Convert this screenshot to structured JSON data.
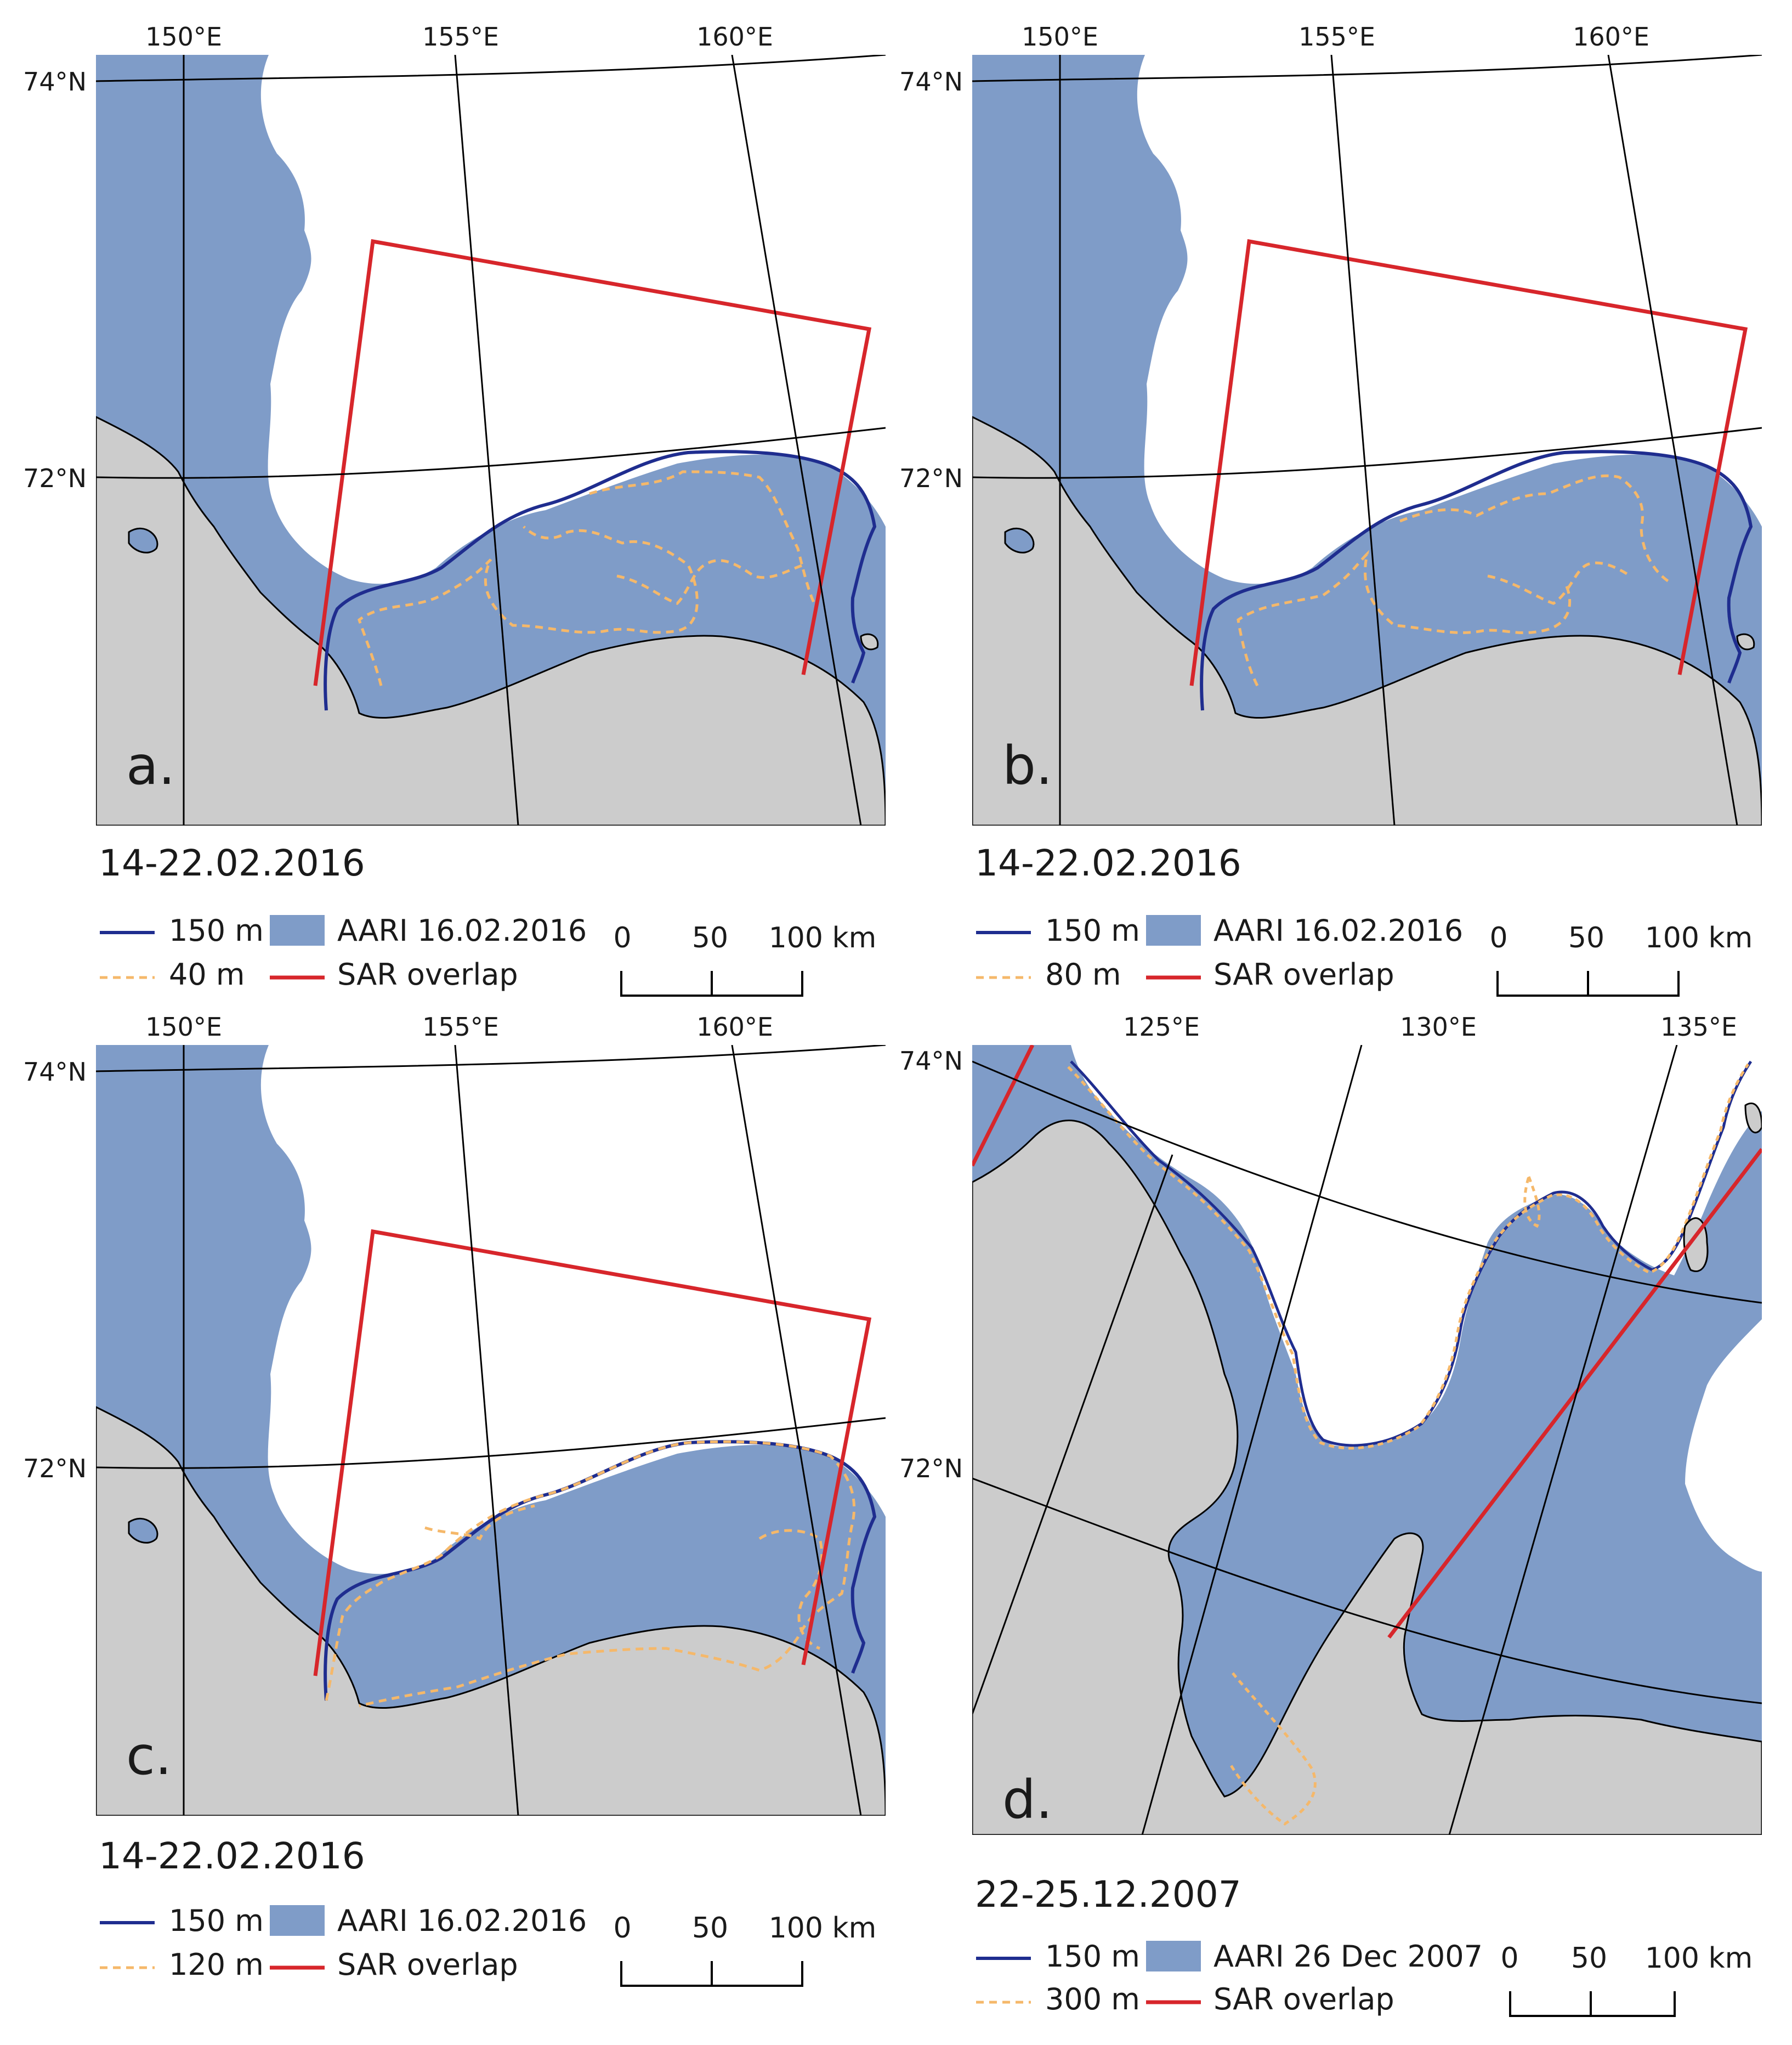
{
  "colors": {
    "sea_ice_fill": "#7f9cc8",
    "land_fill": "#cccccc",
    "contour_150": "#1f2d8f",
    "contour_dashed": "#f5b86a",
    "sar_overlap": "#d7262b",
    "graticule": "#000000"
  },
  "panels": [
    {
      "letter": "a.",
      "date": "14-22.02.2016",
      "lon_labels": [
        "150°E",
        "155°E",
        "160°E"
      ],
      "lat_labels": [
        "74°N",
        "72°N"
      ],
      "legend": {
        "solid_contour_label": "150 m",
        "dashed_contour_label": "40 m",
        "fill_label": "AARI 16.02.2016",
        "sar_label": "SAR overlap"
      },
      "scale": [
        "0",
        "50",
        "100 km"
      ]
    },
    {
      "letter": "b.",
      "date": "14-22.02.2016",
      "lon_labels": [
        "150°E",
        "155°E",
        "160°E"
      ],
      "lat_labels": [
        "74°N",
        "72°N"
      ],
      "legend": {
        "solid_contour_label": "150 m",
        "dashed_contour_label": "80 m",
        "fill_label": "AARI 16.02.2016",
        "sar_label": "SAR overlap"
      },
      "scale": [
        "0",
        "50",
        "100 km"
      ]
    },
    {
      "letter": "c.",
      "date": "14-22.02.2016",
      "lon_labels": [
        "150°E",
        "155°E",
        "160°E"
      ],
      "lat_labels": [
        "74°N",
        "72°N"
      ],
      "legend": {
        "solid_contour_label": "150 m",
        "dashed_contour_label": "120 m",
        "fill_label": "AARI 16.02.2016",
        "sar_label": "SAR overlap"
      },
      "scale": [
        "0",
        "50",
        "100 km"
      ]
    },
    {
      "letter": "d.",
      "date": "22-25.12.2007",
      "lon_labels": [
        "125°E",
        "130°E",
        "135°E"
      ],
      "lat_labels": [
        "74°N",
        "72°N"
      ],
      "legend": {
        "solid_contour_label": "150 m",
        "dashed_contour_label": "300 m",
        "fill_label": "AARI 26 Dec 2007",
        "sar_label": "SAR overlap"
      },
      "scale": [
        "0",
        "50",
        "100 km"
      ]
    }
  ]
}
